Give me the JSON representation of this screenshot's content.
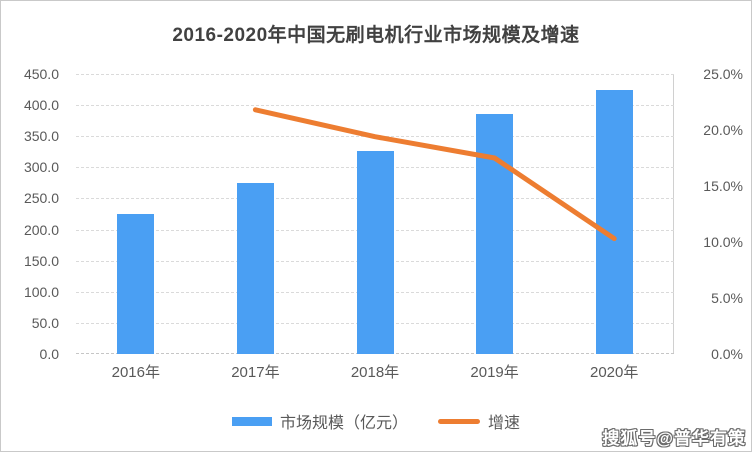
{
  "title": "2016-2020年中国无刷电机行业市场规模及增速",
  "watermark": "搜狐号@普华有策",
  "colors": {
    "bar": "#4A9FF3",
    "line": "#ED7D31",
    "grid": "#DADADA",
    "axis_text": "#595959",
    "title_text": "#414141",
    "page_border": "#C9C9C9",
    "watermark_fill": "#FFFFFF",
    "watermark_outline": "#6B6B6B"
  },
  "legend": {
    "position": "bottom",
    "items": [
      {
        "label": "市场规模（亿元）",
        "swatch": "bar",
        "color": "#4A9FF3"
      },
      {
        "label": "增速",
        "swatch": "line",
        "color": "#ED7D31"
      }
    ]
  },
  "chart_data": {
    "type": "bar+line",
    "title": "2016-2020年中国无刷电机行业市场规模及增速",
    "categories": [
      "2016年",
      "2017年",
      "2018年",
      "2019年",
      "2020年"
    ],
    "series": [
      {
        "name": "市场规模（亿元）",
        "type": "bar",
        "axis": "left",
        "color": "#4A9FF3",
        "values": [
          225,
          275,
          327,
          385,
          424
        ]
      },
      {
        "name": "增速",
        "type": "line",
        "axis": "right",
        "color": "#ED7D31",
        "unit": "%",
        "values": [
          null,
          21.8,
          19.4,
          17.5,
          10.3
        ]
      }
    ],
    "left_axis": {
      "min": 0,
      "max": 450,
      "step": 50,
      "ticks": [
        "450.0",
        "400.0",
        "350.0",
        "300.0",
        "250.0",
        "200.0",
        "150.0",
        "100.0",
        "50.0",
        "0.0"
      ]
    },
    "right_axis": {
      "min": 0,
      "max": 25,
      "step": 5,
      "unit": "%",
      "ticks": [
        "25.0%",
        "20.0%",
        "15.0%",
        "10.0%",
        "5.0%",
        "0.0%"
      ]
    },
    "grid": "horizontal-dashed",
    "legend_position": "bottom"
  }
}
